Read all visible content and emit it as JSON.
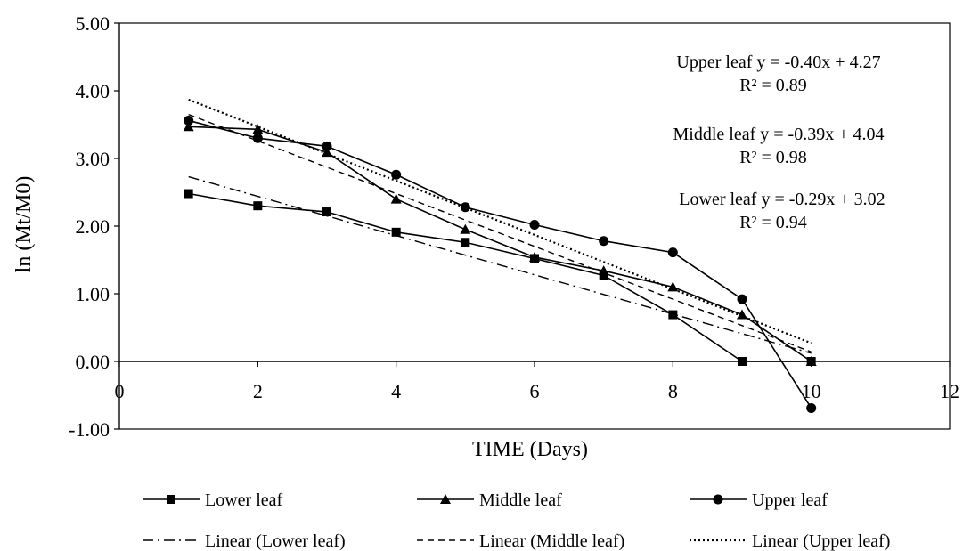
{
  "chart_data": {
    "type": "line",
    "title": "",
    "xlabel": "TIME (Days)",
    "ylabel": "ln (Mt/M0)",
    "xlim": [
      0,
      12
    ],
    "ylim": [
      -1.0,
      5.0
    ],
    "x_ticks": [
      0,
      2,
      4,
      6,
      8,
      10,
      12
    ],
    "x_tick_labels": [
      "0",
      "2",
      "4",
      "6",
      "8",
      "10",
      "12"
    ],
    "y_ticks": [
      -1.0,
      0.0,
      1.0,
      2.0,
      3.0,
      4.0,
      5.0
    ],
    "y_tick_labels": [
      "-1.00",
      "0.00",
      "1.00",
      "2.00",
      "3.00",
      "4.00",
      "5.00"
    ],
    "grid": false,
    "legend_position": "bottom",
    "x": [
      1,
      2,
      3,
      4,
      5,
      6,
      7,
      8,
      9,
      10
    ],
    "series": [
      {
        "name": "Lower leaf",
        "marker": "square",
        "values": [
          2.48,
          2.3,
          2.21,
          1.91,
          1.76,
          1.52,
          1.27,
          0.69,
          0.0,
          0.0
        ]
      },
      {
        "name": "Middle leaf",
        "marker": "triangle",
        "values": [
          3.47,
          3.43,
          3.09,
          2.4,
          1.95,
          1.54,
          1.34,
          1.1,
          0.69,
          0.0
        ]
      },
      {
        "name": "Upper leaf",
        "marker": "circle",
        "values": [
          3.56,
          3.3,
          3.18,
          2.76,
          2.28,
          2.02,
          1.78,
          1.61,
          0.92,
          -0.69
        ]
      }
    ],
    "trendlines": [
      {
        "name": "Linear (Lower leaf)",
        "style": "dash-dot",
        "slope": -0.29,
        "intercept": 3.02
      },
      {
        "name": "Linear (Middle leaf)",
        "style": "dashed",
        "slope": -0.39,
        "intercept": 4.04
      },
      {
        "name": "Linear (Upper leaf)",
        "style": "dotted",
        "slope": -0.4,
        "intercept": 4.27
      }
    ],
    "annotations": [
      {
        "equation": "Upper leaf y = -0.40x + 4.27",
        "r2": "R² = 0.89"
      },
      {
        "equation": "Middle leaf y = -0.39x + 4.04",
        "r2": "R² = 0.98"
      },
      {
        "equation": "Lower leaf y = -0.29x + 3.02",
        "r2": "R² = 0.94"
      }
    ],
    "legend": [
      {
        "label": "Lower leaf",
        "kind": "series",
        "marker": "square",
        "style": "solid"
      },
      {
        "label": "Middle leaf",
        "kind": "series",
        "marker": "triangle",
        "style": "solid"
      },
      {
        "label": "Upper leaf",
        "kind": "series",
        "marker": "circle",
        "style": "solid"
      },
      {
        "label": "Linear (Lower leaf)",
        "kind": "trend",
        "marker": "none",
        "style": "dash-dot"
      },
      {
        "label": "Linear (Middle leaf)",
        "kind": "trend",
        "marker": "none",
        "style": "dashed"
      },
      {
        "label": "Linear (Upper leaf)",
        "kind": "trend",
        "marker": "none",
        "style": "dotted"
      }
    ],
    "colors": {
      "line": "#000000",
      "background": "#ffffff"
    }
  }
}
